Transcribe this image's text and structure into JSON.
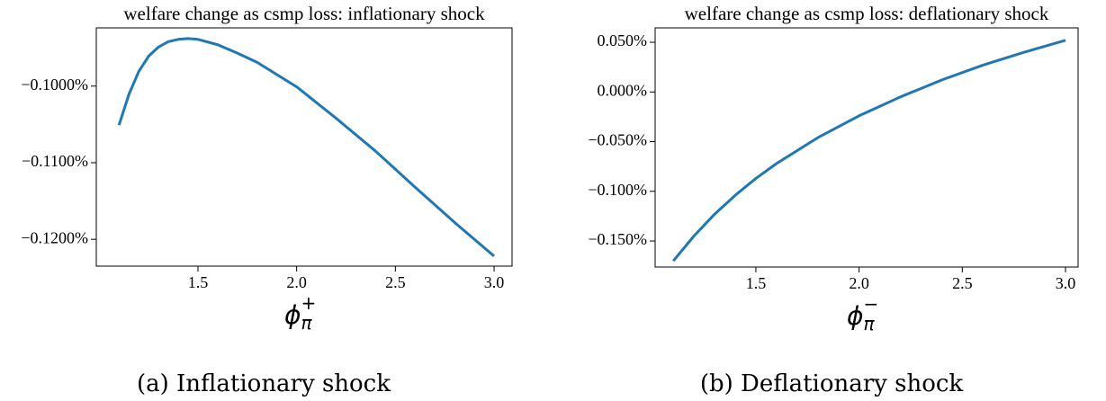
{
  "chart_data": [
    {
      "type": "line",
      "title": "welfare change as csmp loss: inflationary shock",
      "xlabel": [
        "ϕ",
        "π",
        "+"
      ],
      "caption": "(a) Inflationary shock",
      "color": "#1f77b4",
      "x": [
        1.1,
        1.15,
        1.2,
        1.25,
        1.3,
        1.35,
        1.4,
        1.45,
        1.5,
        1.6,
        1.7,
        1.8,
        1.9,
        2.0,
        2.2,
        2.4,
        2.6,
        2.8,
        3.0
      ],
      "values": [
        -0.1051,
        -0.1011,
        -0.0981,
        -0.0961,
        -0.0949,
        -0.0942,
        -0.0939,
        -0.0938,
        -0.0939,
        -0.0946,
        -0.0957,
        -0.0969,
        -0.0985,
        -0.1001,
        -0.1042,
        -0.1085,
        -0.1132,
        -0.1178,
        -0.1222
      ],
      "xlim": [
        0.985,
        3.091
      ],
      "ylim": [
        -0.1235,
        -0.0924
      ],
      "xticks": [
        1.5,
        {
          "value": 2,
          "label": "2.0"
        },
        2.5,
        {
          "value": 3,
          "label": "3.0"
        }
      ],
      "yticks": [
        {
          "value": -0.1,
          "label": "−0.1000%"
        },
        {
          "value": -0.11,
          "label": "−0.1100%"
        },
        {
          "value": -0.12,
          "label": "−0.1200%"
        }
      ]
    },
    {
      "type": "line",
      "title": "welfare change as csmp loss: deflationary shock",
      "xlabel": [
        "ϕ",
        "π",
        "−"
      ],
      "caption": "(b) Deflationary shock",
      "color": "#1f77b4",
      "x": [
        1.1,
        1.2,
        1.3,
        1.4,
        1.5,
        1.6,
        1.8,
        2.0,
        2.2,
        2.4,
        2.6,
        2.8,
        3.0
      ],
      "values": [
        -0.17,
        -0.145,
        -0.123,
        -0.104,
        -0.087,
        -0.072,
        -0.046,
        -0.024,
        -0.005,
        0.012,
        0.027,
        0.04,
        0.052
      ],
      "xlim": [
        1.012,
        3.061
      ],
      "ylim": [
        -0.1762,
        0.0645
      ],
      "xticks": [
        1.5,
        {
          "value": 2,
          "label": "2.0"
        },
        2.5,
        {
          "value": 3,
          "label": "3.0"
        }
      ],
      "yticks": [
        {
          "value": 0.05,
          "label": "0.050%"
        },
        {
          "value": 0,
          "label": "0.000%"
        },
        {
          "value": -0.05,
          "label": "−0.050%"
        },
        {
          "value": -0.1,
          "label": "−0.100%"
        },
        {
          "value": -0.15,
          "label": "−0.150%"
        }
      ]
    }
  ]
}
